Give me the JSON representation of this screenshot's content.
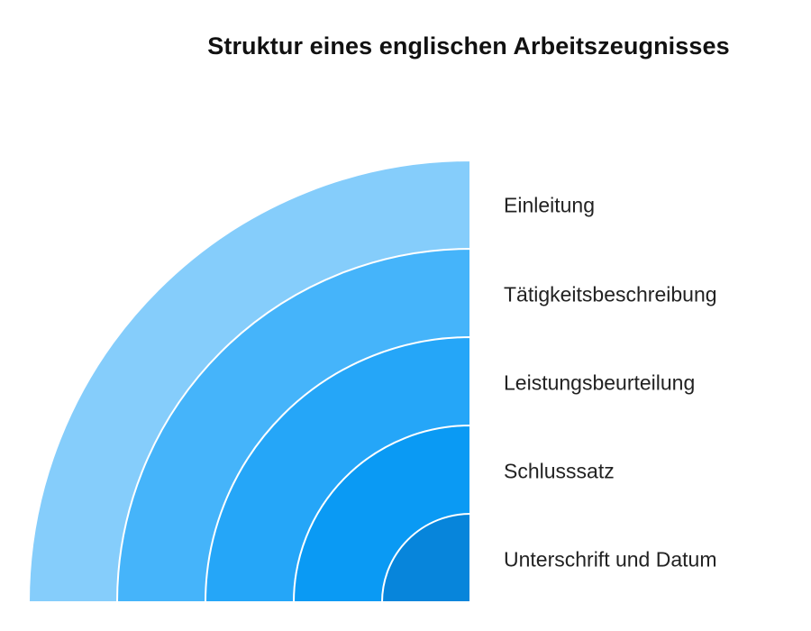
{
  "title": "Struktur eines englischen Arbeitszeugnisses",
  "layers": [
    {
      "label": "Einleitung",
      "color": "#85CDFB"
    },
    {
      "label": "Tätigkeitsbeschreibung",
      "color": "#45B4FA"
    },
    {
      "label": "Leistungsbeurteilung",
      "color": "#25A6F8"
    },
    {
      "label": "Schlusssatz",
      "color": "#0A9AF4"
    },
    {
      "label": "Unterschrift und Datum",
      "color": "#0785DB"
    }
  ]
}
